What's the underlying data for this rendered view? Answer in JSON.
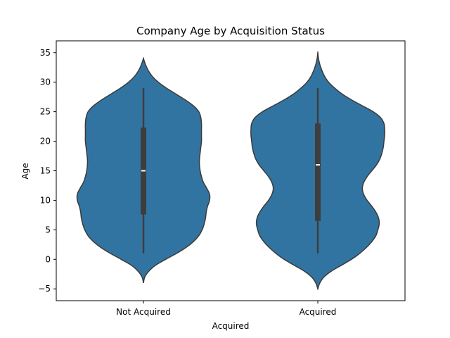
{
  "chart_data": {
    "type": "violin",
    "title": "Company Age by Acquisition Status",
    "xlabel": "Acquired",
    "ylabel": "Age",
    "categories": [
      "Not Acquired",
      "Acquired"
    ],
    "ylim": [
      -7,
      37
    ],
    "yticks": [
      -5,
      0,
      5,
      10,
      15,
      20,
      25,
      30,
      35
    ],
    "grid": false,
    "legend": "none",
    "color": "#3274a1",
    "edge_color": "#3a3a3a",
    "box_color": "#3d3d3d",
    "median_color": "#ffffff",
    "violins": [
      {
        "category": "Not Acquired",
        "min": 1,
        "q1": 7.6,
        "median": 15,
        "q3": 22.3,
        "max": 29,
        "kde_min": -4,
        "kde_max": 34,
        "density": [
          [
            -4,
            0.0
          ],
          [
            -3,
            0.02
          ],
          [
            -2,
            0.08
          ],
          [
            -1,
            0.18
          ],
          [
            0,
            0.33
          ],
          [
            1,
            0.49
          ],
          [
            2,
            0.63
          ],
          [
            3,
            0.74
          ],
          [
            4,
            0.82
          ],
          [
            5,
            0.87
          ],
          [
            6,
            0.9
          ],
          [
            7,
            0.92
          ],
          [
            8,
            0.93
          ],
          [
            9,
            0.95
          ],
          [
            10,
            0.98
          ],
          [
            11,
            0.98
          ],
          [
            12,
            0.94
          ],
          [
            13,
            0.89
          ],
          [
            14,
            0.86
          ],
          [
            15,
            0.84
          ],
          [
            16,
            0.83
          ],
          [
            17,
            0.83
          ],
          [
            18,
            0.84
          ],
          [
            19,
            0.85
          ],
          [
            20,
            0.86
          ],
          [
            21,
            0.86
          ],
          [
            22,
            0.86
          ],
          [
            23,
            0.86
          ],
          [
            24,
            0.85
          ],
          [
            25,
            0.82
          ],
          [
            26,
            0.74
          ],
          [
            27,
            0.62
          ],
          [
            28,
            0.48
          ],
          [
            29,
            0.34
          ],
          [
            30,
            0.22
          ],
          [
            31,
            0.13
          ],
          [
            32,
            0.07
          ],
          [
            33,
            0.03
          ],
          [
            34,
            0.0
          ]
        ]
      },
      {
        "category": "Acquired",
        "min": 1,
        "q1": 6.5,
        "median": 16,
        "q3": 23,
        "max": 29,
        "kde_min": -5,
        "kde_max": 35,
        "density": [
          [
            -5,
            0.0
          ],
          [
            -4,
            0.03
          ],
          [
            -3,
            0.09
          ],
          [
            -2,
            0.2
          ],
          [
            -1,
            0.35
          ],
          [
            0,
            0.5
          ],
          [
            1,
            0.62
          ],
          [
            2,
            0.72
          ],
          [
            3,
            0.8
          ],
          [
            4,
            0.86
          ],
          [
            5,
            0.89
          ],
          [
            6,
            0.91
          ],
          [
            7,
            0.9
          ],
          [
            8,
            0.86
          ],
          [
            9,
            0.8
          ],
          [
            10,
            0.73
          ],
          [
            11,
            0.68
          ],
          [
            12,
            0.66
          ],
          [
            13,
            0.68
          ],
          [
            14,
            0.73
          ],
          [
            15,
            0.8
          ],
          [
            16,
            0.87
          ],
          [
            17,
            0.92
          ],
          [
            18,
            0.95
          ],
          [
            19,
            0.97
          ],
          [
            20,
            0.98
          ],
          [
            21,
            0.99
          ],
          [
            22,
            0.99
          ],
          [
            23,
            0.98
          ],
          [
            24,
            0.93
          ],
          [
            25,
            0.82
          ],
          [
            26,
            0.66
          ],
          [
            27,
            0.5
          ],
          [
            28,
            0.36
          ],
          [
            29,
            0.25
          ],
          [
            30,
            0.16
          ],
          [
            31,
            0.1
          ],
          [
            32,
            0.06
          ],
          [
            33,
            0.03
          ],
          [
            34,
            0.01
          ],
          [
            35,
            0.0
          ]
        ]
      }
    ]
  }
}
